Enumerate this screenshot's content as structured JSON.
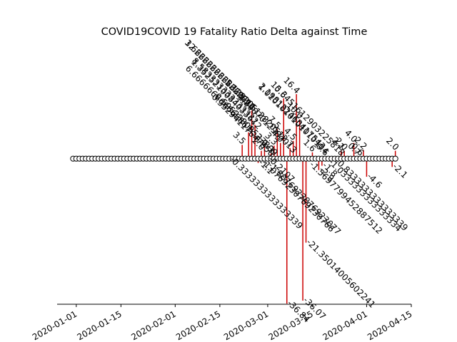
{
  "chart_data": {
    "type": "stem",
    "title": "COVID19COVID 19 Fatality Ratio Delta against Time",
    "xlabel": "",
    "ylabel": "",
    "xlim": [
      "2019-12-26",
      "2020-04-15"
    ],
    "ylim": [
      -37,
      30
    ],
    "x_ticks": [
      "2020-01-01",
      "2020-01-15",
      "2020-02-01",
      "2020-02-15",
      "2020-03-01",
      "2020-03-15",
      "2020-04-01",
      "2020-04-15"
    ],
    "stem_color": "#cc0000",
    "marker": "hollow-circle",
    "legend": "none",
    "grid": false,
    "date_range": [
      "2019-12-31",
      "2020-04-10"
    ],
    "points": [
      {
        "x": "2020-02-18",
        "y": -0.3333333333333339,
        "label": "-0.3333333333333339"
      },
      {
        "x": "2020-02-22",
        "y": 3.5,
        "label": "3.5"
      },
      {
        "x": "2020-02-24",
        "y": 6.666666666666667,
        "label": "6.666666666666667"
      },
      {
        "x": "2020-02-25",
        "y": 12.222222222222221,
        "label": "12.222222222222222"
      },
      {
        "x": "2020-02-26",
        "y": 8.583333333333332,
        "label": "8.583333333333332"
      },
      {
        "x": "2020-02-27",
        "y": -1.1,
        "label": "-1.1"
      },
      {
        "x": "2020-02-28",
        "y": 2.0,
        "label": "2.0"
      },
      {
        "x": "2020-02-29",
        "y": 3.0,
        "label": "3.0"
      },
      {
        "x": "2020-03-01",
        "y": -0.2107,
        "label": "-0.2107"
      },
      {
        "x": "2020-03-02",
        "y": 1.3,
        "label": "1.3"
      },
      {
        "x": "2020-03-03",
        "y": 3.3,
        "label": "3.3"
      },
      {
        "x": "2020-03-04",
        "y": 7.5,
        "label": "7.5"
      },
      {
        "x": "2020-03-05",
        "y": 4.0,
        "label": "4.0"
      },
      {
        "x": "2020-03-06",
        "y": 15.3,
        "label": "15.3"
      },
      {
        "x": "2020-03-07",
        "y": -36.84,
        "label": "-36.84"
      },
      {
        "x": "2020-03-08",
        "y": 2.7,
        "label": "2.7"
      },
      {
        "x": "2020-03-09",
        "y": 4.5,
        "label": "4.5"
      },
      {
        "x": "2020-03-10",
        "y": 16.4,
        "label": "16.4"
      },
      {
        "x": "2020-03-11",
        "y": 10.0,
        "label": "10.0"
      },
      {
        "x": "2020-03-12",
        "y": -36.07,
        "label": "-36.07"
      },
      {
        "x": "2020-03-13",
        "y": -21.35014005602241,
        "label": "-21.35014005602241"
      },
      {
        "x": "2020-03-15",
        "y": 1.6,
        "label": "1.6"
      },
      {
        "x": "2020-03-17",
        "y": -2.9,
        "label": "-2.9"
      },
      {
        "x": "2020-03-18",
        "y": -1.8,
        "label": "-1.8"
      },
      {
        "x": "2020-03-19",
        "y": 0.6,
        "label": "0.6"
      },
      {
        "x": "2020-03-24",
        "y": 2.1,
        "label": "2.1"
      },
      {
        "x": "2020-03-25",
        "y": 2.0,
        "label": "2.0"
      },
      {
        "x": "2020-03-28",
        "y": 4.0,
        "label": "4.0"
      },
      {
        "x": "2020-03-29",
        "y": 0.7,
        "label": "0.7"
      },
      {
        "x": "2020-03-30",
        "y": 0.6,
        "label": "0.6"
      },
      {
        "x": "2020-03-31",
        "y": 2.2,
        "label": "2.2"
      },
      {
        "x": "2020-04-01",
        "y": -4.6,
        "label": "-4.6"
      },
      {
        "x": "2020-04-09",
        "y": -2.1,
        "label": "-2.1"
      },
      {
        "x": "2020-04-10",
        "y": 2.0,
        "label": "2.0"
      }
    ],
    "overlapping_labels": [
      {
        "text": "3.6666666666666666",
        "x": "2020-02-25",
        "y": 12.2
      },
      {
        "text": "1.3525210084033612",
        "x": "2020-02-27",
        "y": 7.3
      },
      {
        "text": "-1.0769230769230766",
        "x": "2020-02-28",
        "y": -1.1
      },
      {
        "text": "-1.8076923076923077",
        "x": "2020-03-01",
        "y": -1.8
      },
      {
        "text": "0.35294117647058",
        "x": "2020-03-02",
        "y": 0.4
      },
      {
        "text": "5.1282051282051",
        "x": "2020-03-05",
        "y": 5.1
      },
      {
        "text": "0.59523809523809",
        "x": "2020-03-03",
        "y": 0.6
      },
      {
        "text": "1.2987012987013",
        "x": "2020-03-09",
        "y": 1.3
      },
      {
        "text": "2.198122460417543",
        "x": "2020-03-18",
        "y": 2.2
      },
      {
        "text": "1.0101010101010104",
        "x": "2020-03-19",
        "y": 1.0
      },
      {
        "text": "-0.8333333333333339",
        "x": "2020-03-22",
        "y": -0.8
      },
      {
        "text": "0.6451612903225818",
        "x": "2020-03-24",
        "y": 0.6
      },
      {
        "text": "-1.0333333333333334",
        "x": "2020-03-20",
        "y": -1.0
      },
      {
        "text": "-1.5697799452887512",
        "x": "2020-03-14",
        "y": -1.6
      }
    ]
  }
}
